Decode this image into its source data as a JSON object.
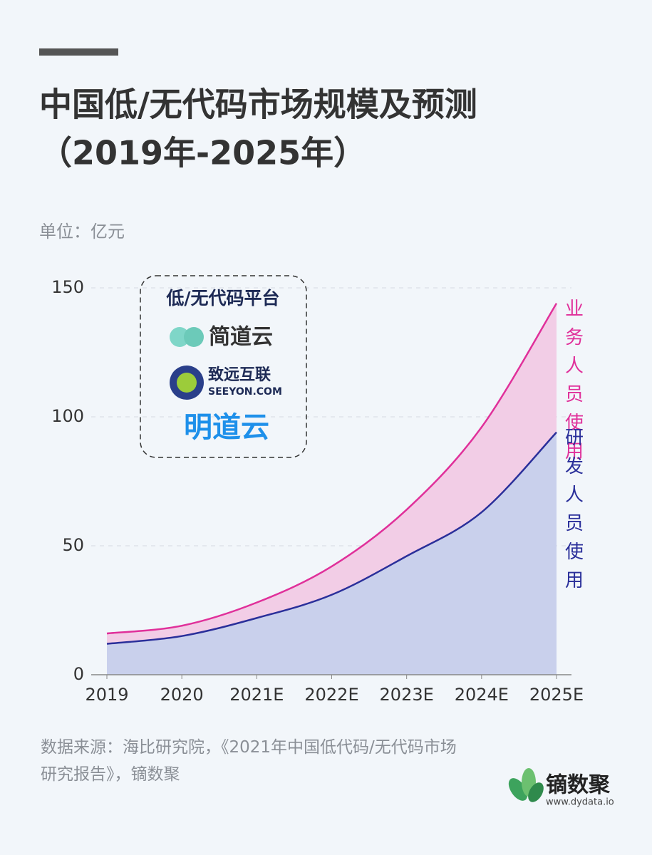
{
  "chart_data": {
    "type": "area",
    "title": "中国低/无代码市场规模及预测",
    "subtitle": "（2019年-2025年）",
    "unit": "单位：亿元",
    "categories": [
      "2019",
      "2020",
      "2021E",
      "2022E",
      "2023E",
      "2024E",
      "2025E"
    ],
    "series": [
      {
        "name": "业务人员使用",
        "color": "#e0309a",
        "fill": "#f2cde6",
        "values": [
          16,
          19,
          28,
          42,
          64,
          96,
          144
        ]
      },
      {
        "name": "研发人员使用",
        "color": "#2a2f9a",
        "fill": "#c9d0ec",
        "values": [
          12,
          15,
          22,
          31,
          46,
          63,
          94
        ]
      }
    ],
    "ylim": [
      0,
      150
    ],
    "yticks": [
      0,
      50,
      100,
      150
    ],
    "grid": true
  },
  "legend_box": {
    "title": "低/无代码平台",
    "logos": [
      "简道云",
      "致远互联",
      "SEEYON.COM",
      "明道云"
    ]
  },
  "source": "数据来源：海比研究院，《2021年中国低代码/无代码市场研究报告》，镝数聚",
  "brand": {
    "name": "镝数聚",
    "url": "www.dydata.io"
  }
}
